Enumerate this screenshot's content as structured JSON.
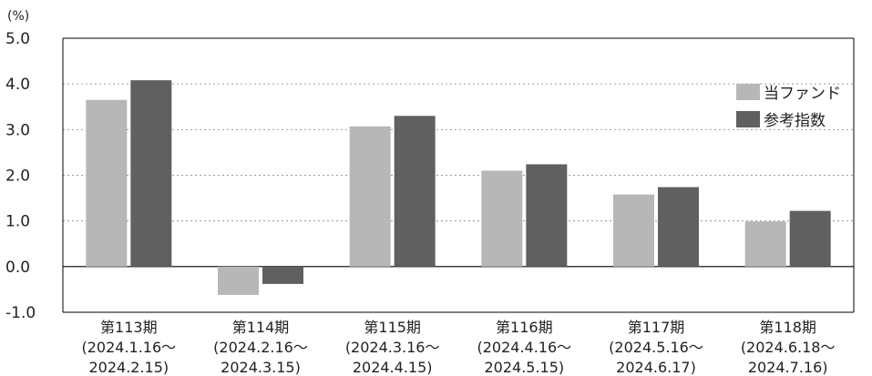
{
  "chart_data": {
    "type": "bar",
    "unit_label": "(%)",
    "categories": [
      {
        "name": "第113期",
        "period_start": "(2024.1.16〜",
        "period_end": "2024.2.15)"
      },
      {
        "name": "第114期",
        "period_start": "(2024.2.16〜",
        "period_end": "2024.3.15)"
      },
      {
        "name": "第115期",
        "period_start": "(2024.3.16〜",
        "period_end": "2024.4.15)"
      },
      {
        "name": "第116期",
        "period_start": "(2024.4.16〜",
        "period_end": "2024.5.15)"
      },
      {
        "name": "第117期",
        "period_start": "(2024.5.16〜",
        "period_end": "2024.6.17)"
      },
      {
        "name": "第118期",
        "period_start": "(2024.6.18〜",
        "period_end": "2024.7.16)"
      }
    ],
    "series": [
      {
        "name": "当ファンド",
        "color": "#b7b7b7",
        "values": [
          3.65,
          -0.62,
          3.07,
          2.1,
          1.58,
          0.99
        ]
      },
      {
        "name": "参考指数",
        "color": "#606060",
        "values": [
          4.08,
          -0.38,
          3.3,
          2.24,
          1.74,
          1.22
        ]
      }
    ],
    "y_ticks": [
      "5.0",
      "4.0",
      "3.0",
      "2.0",
      "1.0",
      "0.0",
      "-1.0"
    ],
    "ylim": [
      -1.0,
      5.0
    ],
    "grid": "dotted horizontal",
    "legend_position": "right"
  }
}
